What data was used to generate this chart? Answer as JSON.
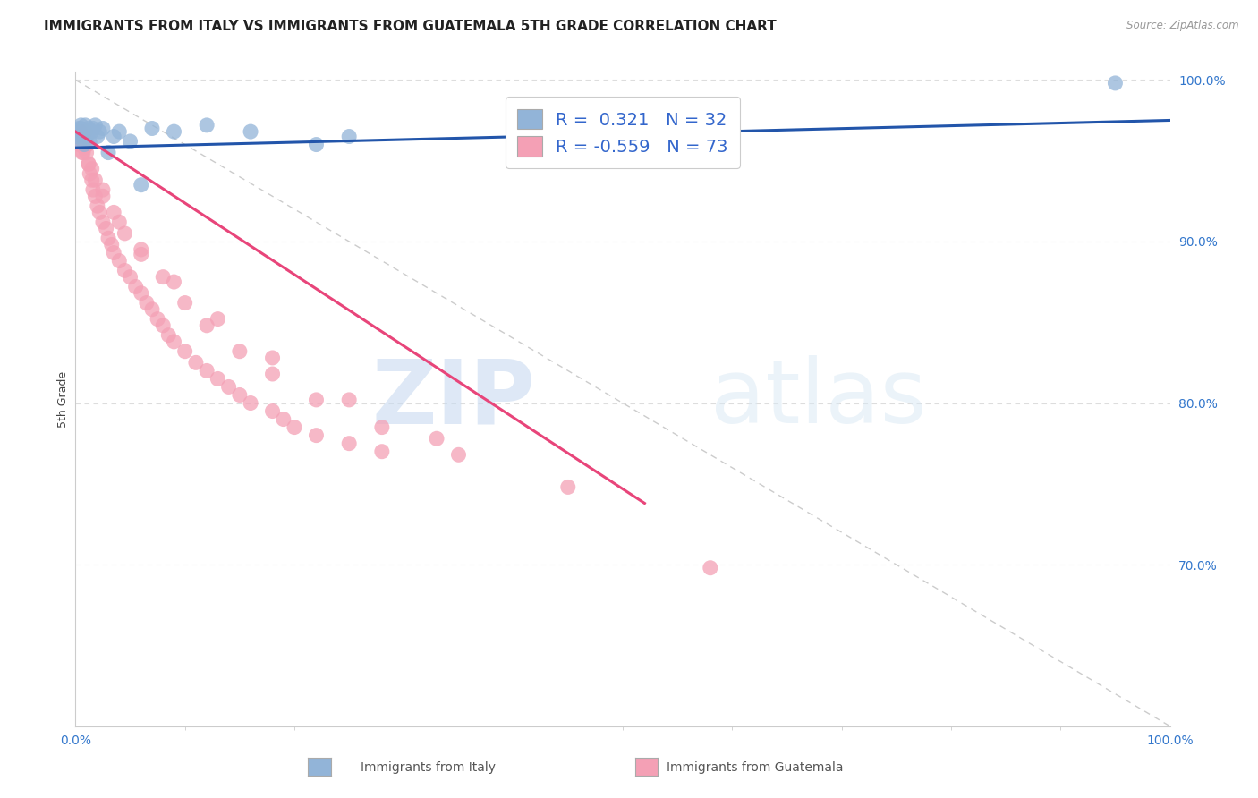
{
  "title": "IMMIGRANTS FROM ITALY VS IMMIGRANTS FROM GUATEMALA 5TH GRADE CORRELATION CHART",
  "source": "Source: ZipAtlas.com",
  "ylabel": "5th Grade",
  "italy_R": 0.321,
  "italy_N": 32,
  "guatemala_R": -0.559,
  "guatemala_N": 73,
  "italy_color": "#92b4d8",
  "guatemala_color": "#f4a0b5",
  "italy_line_color": "#2255aa",
  "guatemala_line_color": "#e8457a",
  "dashed_line_color": "#cccccc",
  "watermark_zip": "ZIP",
  "watermark_atlas": "atlas",
  "italy_scatter_x": [
    0.001,
    0.002,
    0.003,
    0.004,
    0.005,
    0.005,
    0.006,
    0.007,
    0.008,
    0.009,
    0.01,
    0.011,
    0.012,
    0.013,
    0.015,
    0.016,
    0.018,
    0.02,
    0.022,
    0.025,
    0.03,
    0.035,
    0.04,
    0.05,
    0.06,
    0.07,
    0.09,
    0.12,
    0.16,
    0.22,
    0.25,
    0.95
  ],
  "italy_scatter_y": [
    0.965,
    0.968,
    0.97,
    0.962,
    0.97,
    0.972,
    0.965,
    0.968,
    0.96,
    0.972,
    0.965,
    0.968,
    0.97,
    0.962,
    0.968,
    0.97,
    0.972,
    0.965,
    0.968,
    0.97,
    0.955,
    0.965,
    0.968,
    0.962,
    0.935,
    0.97,
    0.968,
    0.972,
    0.968,
    0.96,
    0.965,
    0.998
  ],
  "guatemala_scatter_x": [
    0.002,
    0.003,
    0.004,
    0.005,
    0.006,
    0.007,
    0.008,
    0.009,
    0.01,
    0.011,
    0.012,
    0.013,
    0.015,
    0.016,
    0.018,
    0.02,
    0.022,
    0.025,
    0.028,
    0.03,
    0.033,
    0.035,
    0.04,
    0.045,
    0.05,
    0.055,
    0.06,
    0.065,
    0.07,
    0.075,
    0.08,
    0.085,
    0.09,
    0.1,
    0.11,
    0.12,
    0.13,
    0.14,
    0.15,
    0.16,
    0.18,
    0.19,
    0.2,
    0.22,
    0.25,
    0.28,
    0.008,
    0.015,
    0.025,
    0.035,
    0.045,
    0.06,
    0.08,
    0.1,
    0.12,
    0.15,
    0.18,
    0.22,
    0.28,
    0.35,
    0.007,
    0.012,
    0.018,
    0.025,
    0.04,
    0.06,
    0.09,
    0.13,
    0.18,
    0.25,
    0.33,
    0.45,
    0.58
  ],
  "guatemala_scatter_y": [
    0.965,
    0.96,
    0.968,
    0.96,
    0.955,
    0.965,
    0.96,
    0.968,
    0.955,
    0.96,
    0.948,
    0.942,
    0.938,
    0.932,
    0.928,
    0.922,
    0.918,
    0.912,
    0.908,
    0.902,
    0.898,
    0.893,
    0.888,
    0.882,
    0.878,
    0.872,
    0.868,
    0.862,
    0.858,
    0.852,
    0.848,
    0.842,
    0.838,
    0.832,
    0.825,
    0.82,
    0.815,
    0.81,
    0.805,
    0.8,
    0.795,
    0.79,
    0.785,
    0.78,
    0.775,
    0.77,
    0.958,
    0.945,
    0.932,
    0.918,
    0.905,
    0.892,
    0.878,
    0.862,
    0.848,
    0.832,
    0.818,
    0.802,
    0.785,
    0.768,
    0.955,
    0.948,
    0.938,
    0.928,
    0.912,
    0.895,
    0.875,
    0.852,
    0.828,
    0.802,
    0.778,
    0.748,
    0.698
  ],
  "xlim": [
    0.0,
    1.0
  ],
  "ylim": [
    0.6,
    1.005
  ],
  "ytick_labels": [
    "100.0%",
    "90.0%",
    "80.0%",
    "70.0%"
  ],
  "ytick_vals": [
    1.0,
    0.9,
    0.8,
    0.7
  ],
  "xtick_labels": [
    "0.0%",
    "100.0%"
  ],
  "xtick_vals": [
    0.0,
    1.0
  ],
  "grid_color": "#dddddd",
  "title_fontsize": 11,
  "axis_label_fontsize": 9,
  "tick_fontsize": 10,
  "background_color": "#ffffff",
  "italy_line_x": [
    0.0,
    1.0
  ],
  "italy_line_y": [
    0.958,
    0.975
  ],
  "guatemala_line_x": [
    0.0,
    0.52
  ],
  "guatemala_line_y": [
    0.968,
    0.738
  ]
}
